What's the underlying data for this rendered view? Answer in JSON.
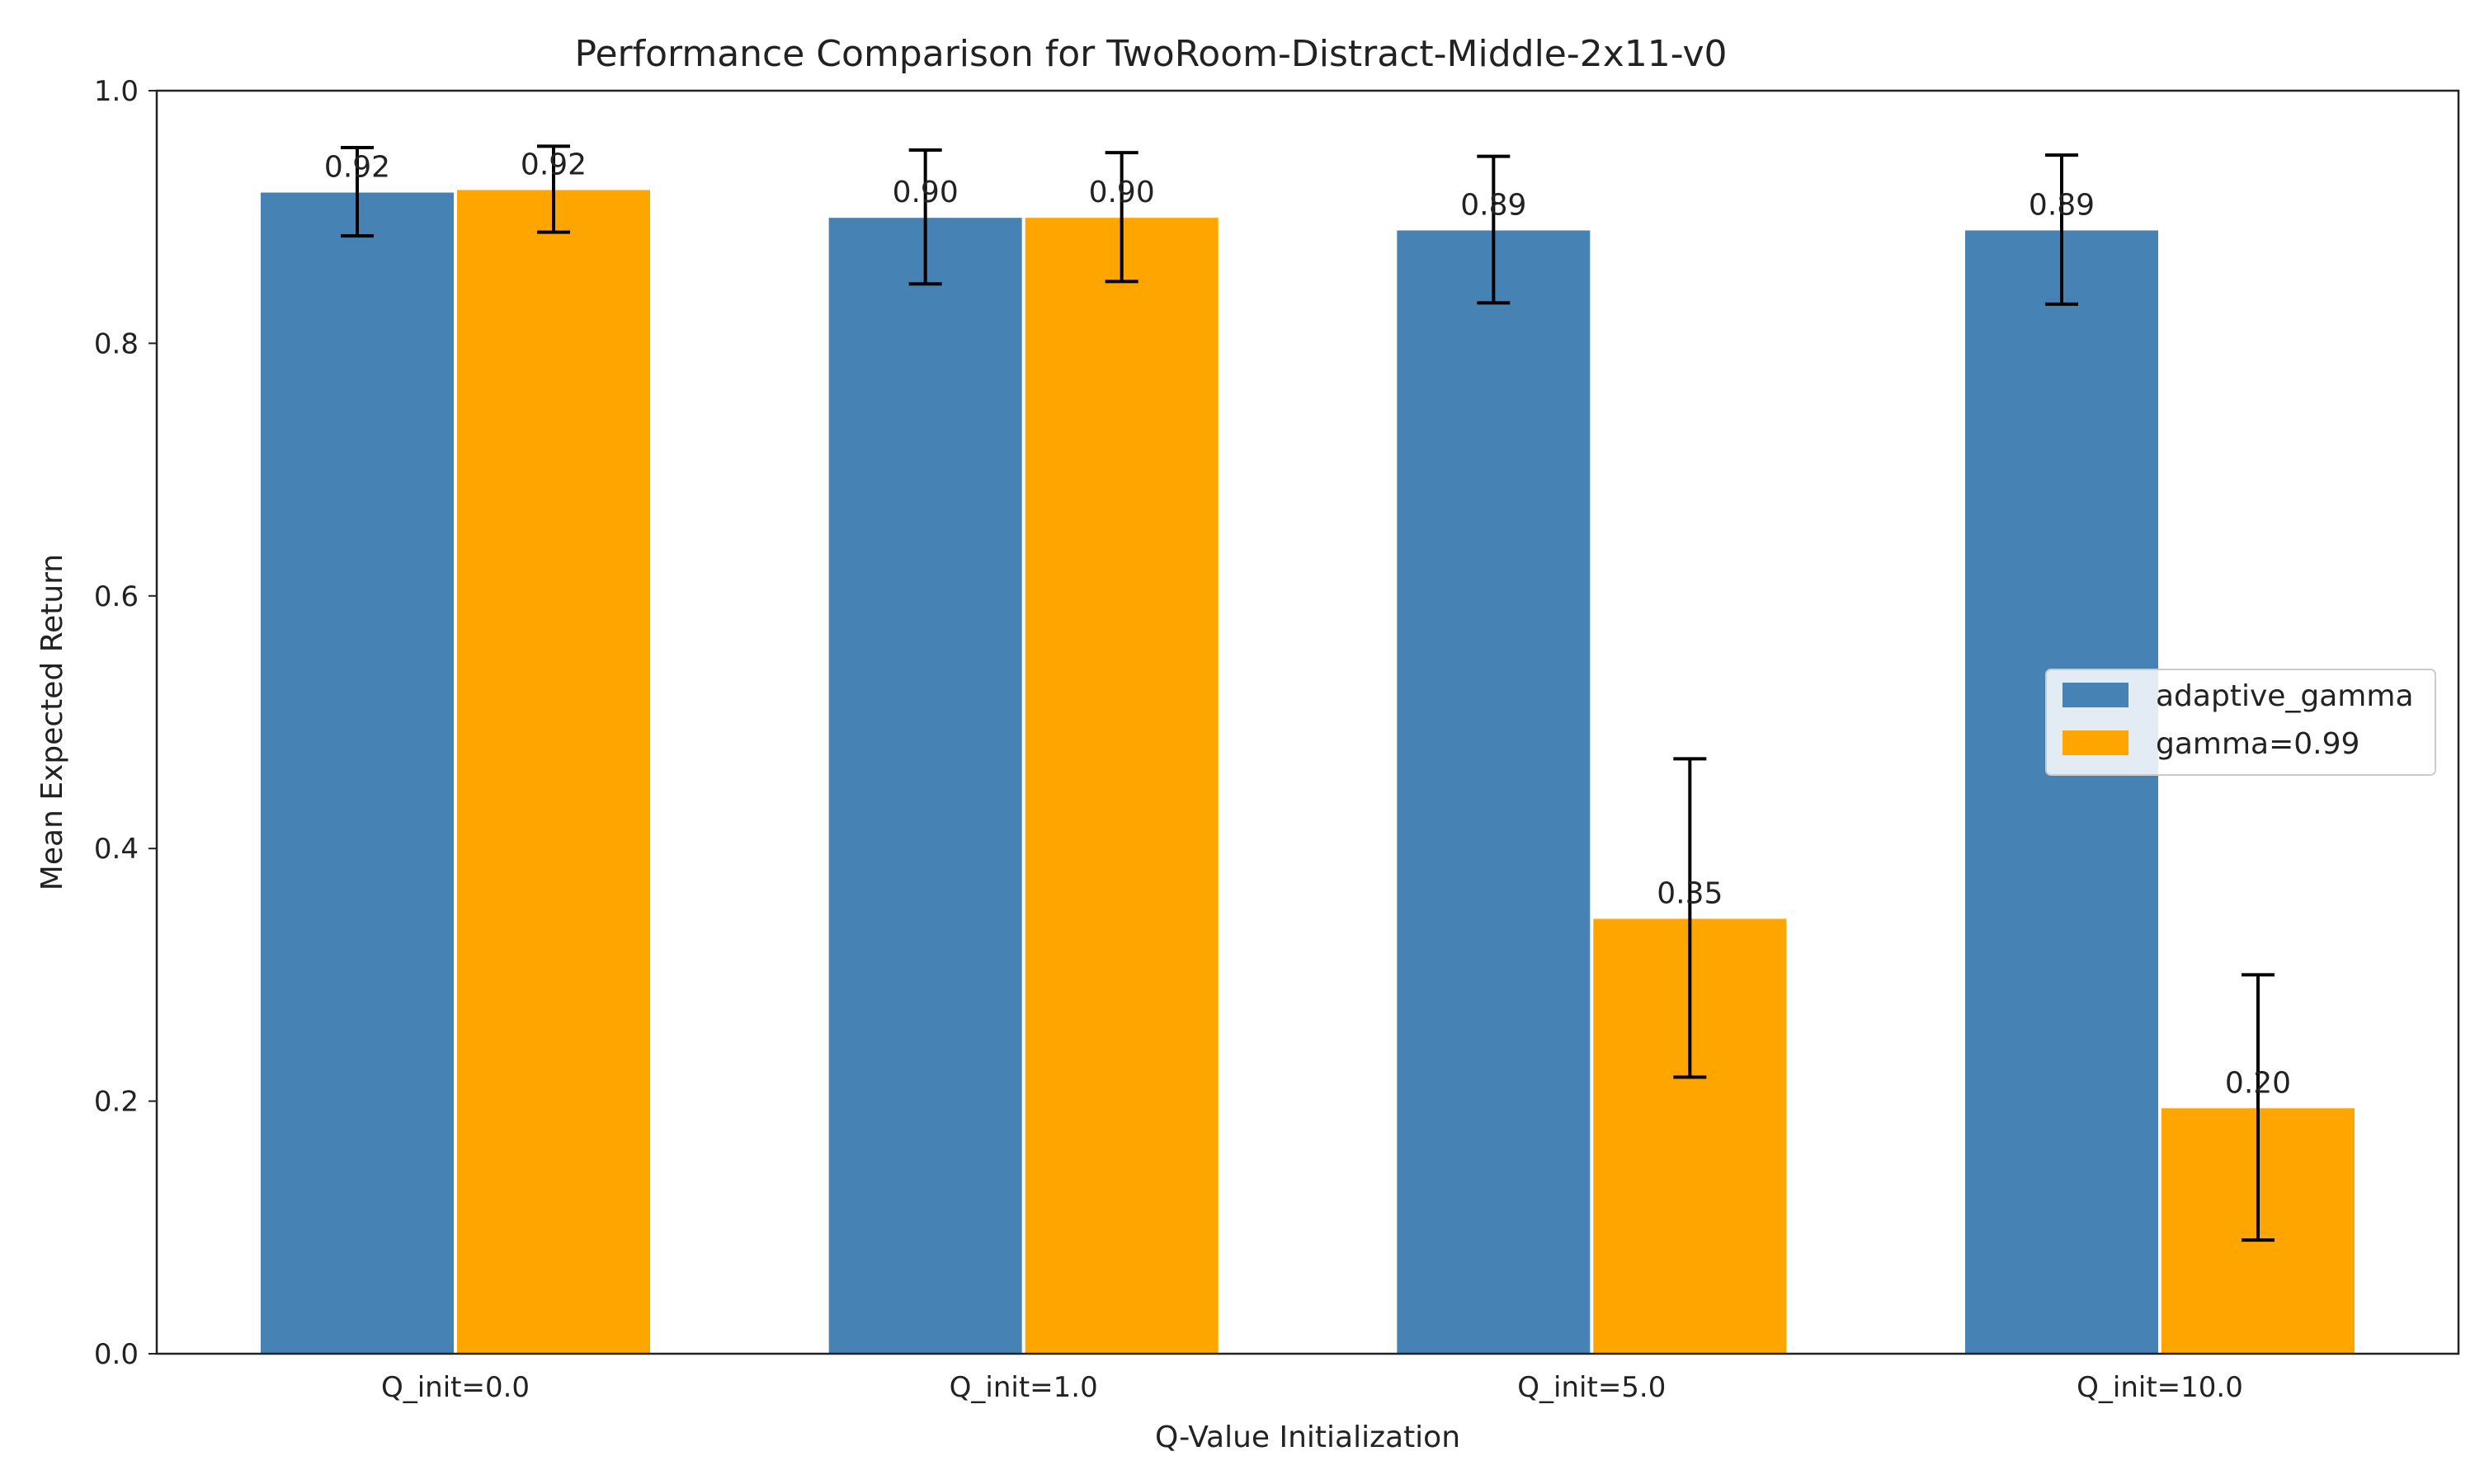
{
  "chart_data": {
    "type": "bar",
    "title": "Performance Comparison for TwoRoom-Distract-Middle-2x11-v0",
    "xlabel": "Q-Value Initialization",
    "ylabel": "Mean Expected Return",
    "ylim": [
      0.0,
      1.0
    ],
    "yticks": [
      "0.0",
      "0.2",
      "0.4",
      "0.6",
      "0.8",
      "1.0"
    ],
    "categories": [
      "Q_init=0.0",
      "Q_init=1.0",
      "Q_init=5.0",
      "Q_init=10.0"
    ],
    "series": [
      {
        "name": "adaptive_gamma",
        "color": "#4682b4",
        "values": [
          0.92,
          0.9,
          0.89,
          0.89
        ],
        "errors": [
          0.035,
          0.053,
          0.058,
          0.059
        ],
        "labels": [
          "0.92",
          "0.90",
          "0.89",
          "0.89"
        ]
      },
      {
        "name": "gamma=0.99",
        "color": "#ffa500",
        "values": [
          0.922,
          0.9,
          0.345,
          0.195
        ],
        "errors": [
          0.034,
          0.051,
          0.126,
          0.105
        ],
        "labels": [
          "0.92",
          "0.90",
          "0.35",
          "0.20"
        ]
      }
    ],
    "legend": {
      "position": "center-right"
    },
    "grid": false
  }
}
